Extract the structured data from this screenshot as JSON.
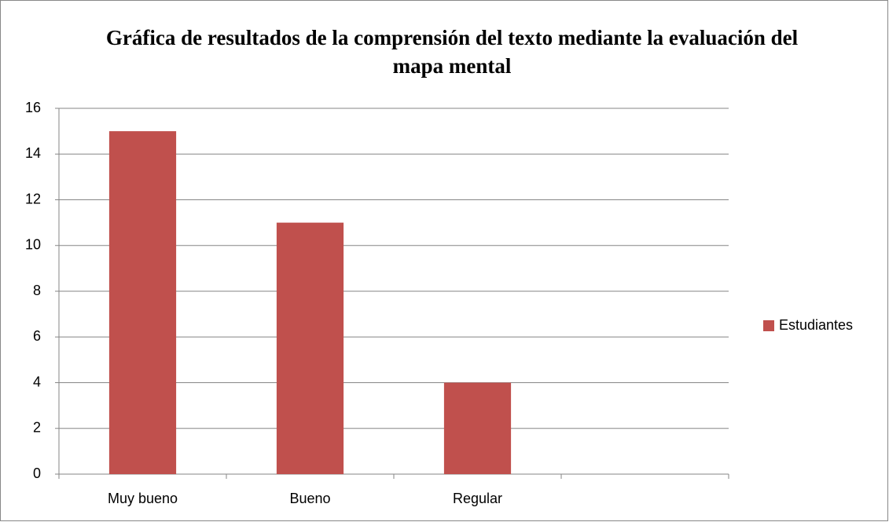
{
  "chart_data": {
    "type": "bar",
    "title": "Gráfica de resultados de la comprensión del texto mediante la evaluación del mapa mental",
    "categories": [
      "Muy bueno",
      "Bueno",
      "Regular",
      null
    ],
    "series": [
      {
        "name": "Estudiantes",
        "color": "#c0504d",
        "values": [
          15,
          11,
          4,
          null
        ]
      }
    ],
    "ylim": [
      0,
      16
    ],
    "yticks": [
      0,
      2,
      4,
      6,
      8,
      10,
      12,
      14,
      16
    ],
    "grid": true,
    "legend": "right"
  }
}
